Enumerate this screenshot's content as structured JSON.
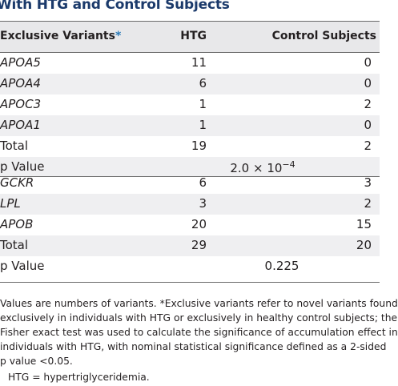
{
  "title": "With HTG and Control Subjects",
  "header": {
    "col1": "Exclusive Variants",
    "col1_marker": "*",
    "col2": "HTG",
    "col3": "Control Subjects"
  },
  "rows": [
    {
      "name": "APOA5",
      "htg": "11",
      "control": "0"
    },
    {
      "name": "APOA4",
      "htg": "6",
      "control": "0"
    },
    {
      "name": "APOC3",
      "htg": "1",
      "control": "2"
    },
    {
      "name": "APOA1",
      "htg": "1",
      "control": "0"
    },
    {
      "name": "Total",
      "htg": "19",
      "control": "2"
    },
    {
      "name": "p Value",
      "p_base": "2.0 × 10",
      "p_exp": "−4"
    },
    {
      "name": "GCKR",
      "htg": "6",
      "control": "3"
    },
    {
      "name": "LPL",
      "htg": "3",
      "control": "2"
    },
    {
      "name": "APOB",
      "htg": "20",
      "control": "15"
    },
    {
      "name": "Total",
      "htg": "29",
      "control": "20"
    },
    {
      "name": "p Value",
      "p_text": "0.225"
    }
  ],
  "footnote_lines": [
    "Values are numbers of variants. *Exclusive variants refer to novel variants found",
    "exclusively in individuals with HTG or exclusively in healthy control subjects; the",
    "Fisher exact test was used to calculate the significance of accumulation effect in",
    "individuals with HTG, with nominal statistical significance defined as a 2-sided",
    "p value <0.05."
  ],
  "abbreviation": "HTG = hypertriglyceridemia."
}
